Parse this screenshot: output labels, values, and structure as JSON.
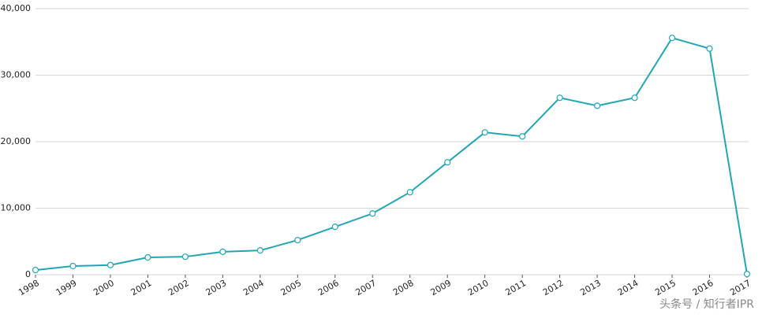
{
  "chart_data": {
    "type": "line",
    "categories": [
      "1998",
      "1999",
      "2000",
      "2001",
      "2002",
      "2003",
      "2004",
      "2005",
      "2006",
      "2007",
      "2008",
      "2009",
      "2010",
      "2011",
      "2012",
      "2013",
      "2014",
      "2015",
      "2016",
      "2017"
    ],
    "values": [
      700,
      1300,
      1450,
      2600,
      2700,
      3450,
      3650,
      5200,
      7200,
      9200,
      12400,
      16900,
      21400,
      20800,
      26600,
      25400,
      26600,
      35600,
      34000,
      100
    ],
    "color": "#21a6b5",
    "ylim": [
      0,
      40000
    ],
    "yticks": [
      0,
      {
        "value": 10000,
        "label": "10,000"
      },
      {
        "value": 20000,
        "label": "20,000"
      },
      {
        "value": 30000,
        "label": "30,000"
      },
      {
        "value": 40000,
        "label": "40,000"
      }
    ],
    "grid": true,
    "watermark": "头条号 / 知行者IPR"
  }
}
